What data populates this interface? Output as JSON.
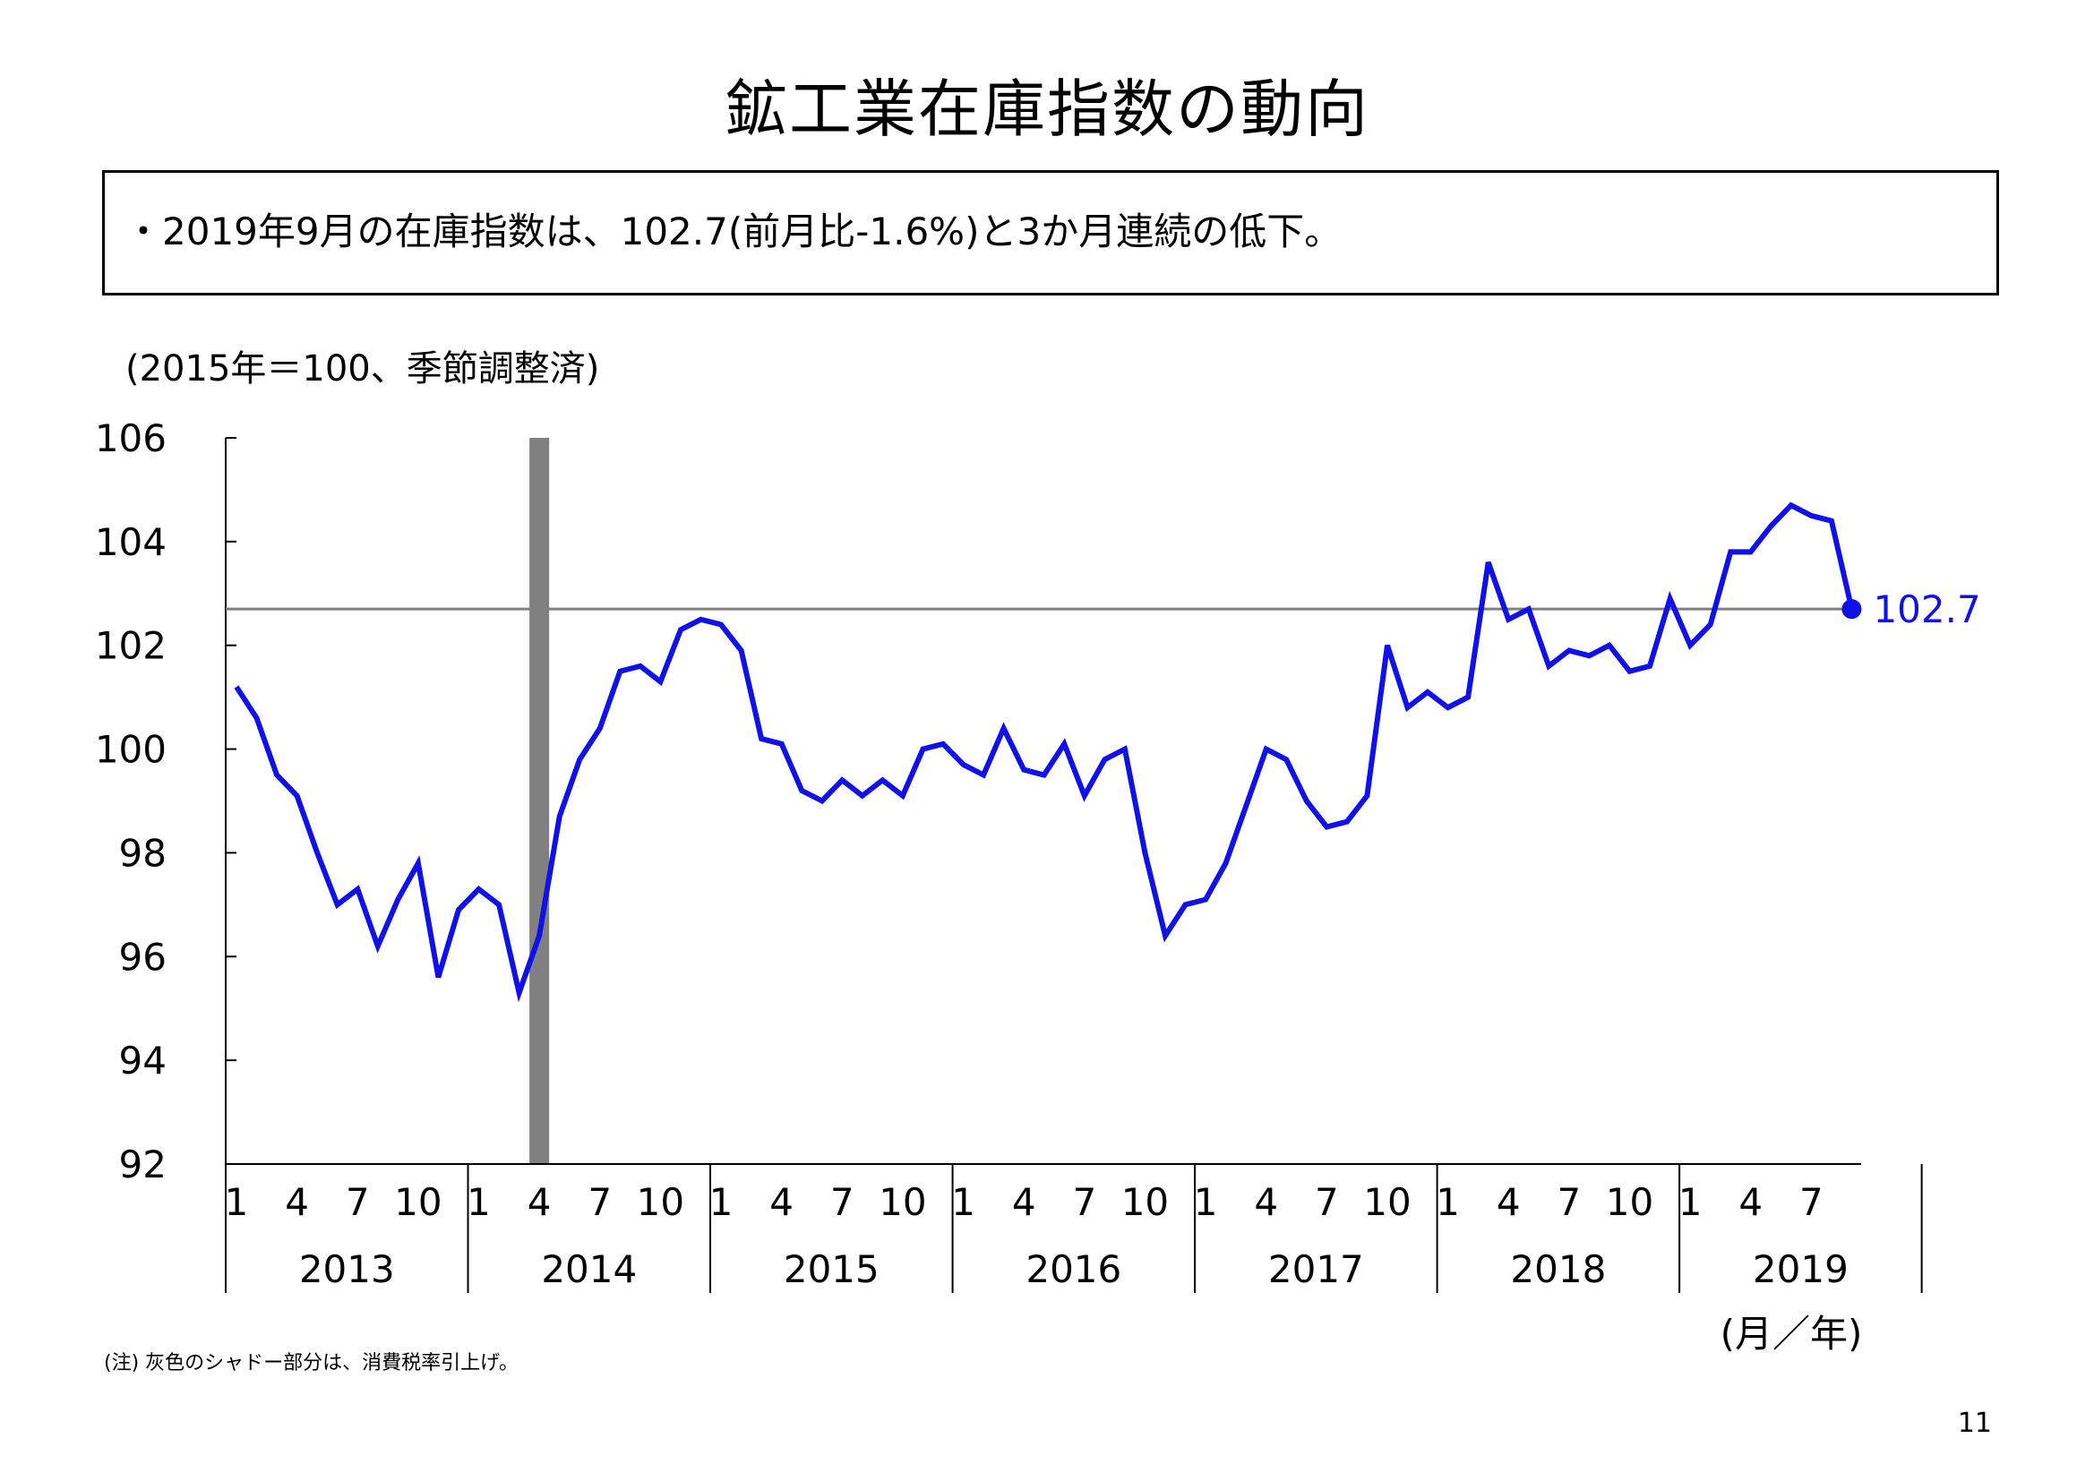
{
  "title": "鉱工業在庫指数の動向",
  "summary": "・2019年9月の在庫指数は、102.7(前月比-1.6%)と3か月連続の低下。",
  "unit_note": "(2015年＝100、季節調整済)",
  "footnote": "(注) 灰色のシャドー部分は、消費税率引上げ。",
  "page_number": "11",
  "colors": {
    "line": "#1010e8",
    "reference": "#808080",
    "shade": "#808080",
    "axis": "#000000"
  },
  "chart_data": {
    "type": "line",
    "xlabel": "(月／年)",
    "ylim": [
      92,
      106
    ],
    "yticks": [
      "106",
      "104",
      "102",
      "100",
      "98",
      "96",
      "94",
      "92"
    ],
    "month_ticks": [
      "1",
      "4",
      "7",
      "10"
    ],
    "years": [
      "2013",
      "2014",
      "2015",
      "2016",
      "2017",
      "2018",
      "2019"
    ],
    "reference_value": 102.7,
    "last_value_label": "102.7",
    "shade_month": "2014-04",
    "series": [
      {
        "start": "2013-01",
        "values": [
          101.2,
          100.6,
          99.5,
          99.1,
          98.0,
          97.0,
          97.3,
          96.2,
          97.1,
          97.8,
          95.6,
          96.9,
          97.3,
          97.0,
          95.3,
          96.4,
          98.7,
          99.8,
          100.4,
          101.5,
          101.6,
          101.3,
          102.3,
          102.5,
          102.4,
          101.9,
          100.2,
          100.1,
          99.2,
          99.0,
          99.4,
          99.1,
          99.4,
          99.1,
          100.0,
          100.1,
          99.7,
          99.5,
          100.4,
          99.6,
          99.5,
          100.1,
          99.1,
          99.8,
          100.0,
          98.0,
          96.4,
          97.0,
          97.1,
          97.8,
          98.9,
          100.0,
          99.8,
          99.0,
          98.5,
          98.6,
          99.1,
          102.0,
          100.8,
          101.1,
          100.8,
          101.0,
          103.6,
          102.5,
          102.7,
          101.6,
          101.9,
          101.8,
          102.0,
          101.5,
          101.6,
          102.9,
          102.0,
          102.4,
          103.8,
          103.8,
          104.3,
          104.7,
          104.5,
          104.4,
          102.7
        ]
      }
    ]
  }
}
